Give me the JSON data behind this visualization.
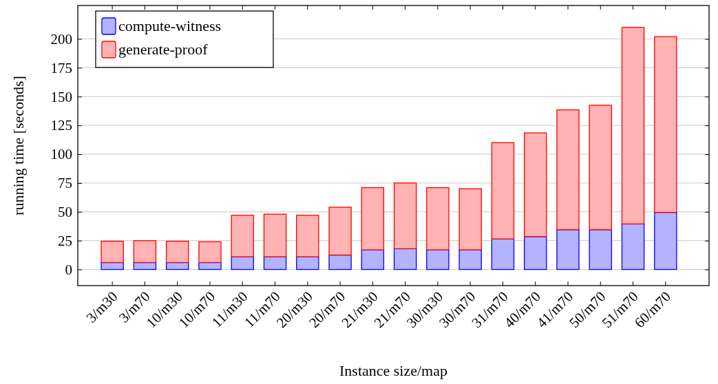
{
  "chart_data": {
    "type": "bar",
    "stacked": true,
    "xlabel": "Instance size/map",
    "ylabel": "running time [seconds]",
    "categories": [
      "3/m30",
      "3/m70",
      "10/m30",
      "10/m70",
      "11/m30",
      "11/m70",
      "20/m30",
      "20/m70",
      "21/m30",
      "21/m70",
      "30/m30",
      "30/m70",
      "31/m70",
      "40/m70",
      "41/m70",
      "50/m70",
      "51/m70",
      "60/m70"
    ],
    "series": [
      {
        "name": "compute-witness",
        "color": "#b3b3ff",
        "values": [
          6,
          6,
          6,
          6,
          11,
          11,
          11,
          12.5,
          17,
          18,
          17,
          17,
          26.5,
          28.5,
          34.5,
          34.5,
          39.5,
          49.5
        ]
      },
      {
        "name": "generate-proof",
        "color": "#ffb3b3",
        "values": [
          18.5,
          19,
          18.5,
          18,
          36,
          37,
          36,
          41.5,
          54,
          57,
          54,
          53,
          83.5,
          90,
          104,
          108,
          170.5,
          152.5
        ]
      }
    ],
    "ylim": [
      -14,
      229
    ],
    "yticks": [
      0,
      25,
      50,
      75,
      100,
      125,
      150,
      175,
      200
    ],
    "grid": "y",
    "legend": "top left"
  }
}
